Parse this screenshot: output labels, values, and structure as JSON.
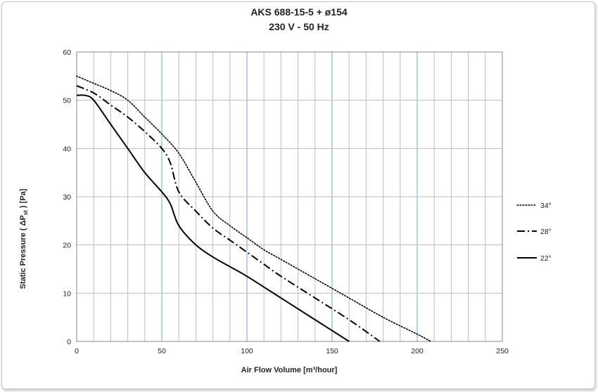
{
  "chart_data": {
    "type": "line",
    "title": "AKS 688-15-5 + ø154",
    "subtitle": "230 V - 50 Hz",
    "xlabel": "Air Flow Volume [m³/hour]",
    "ylabel_parts": {
      "prefix": "Static Pressure ( ΔP",
      "sub": "st",
      "suffix": " ) [Pa]"
    },
    "xlim": [
      0,
      250
    ],
    "ylim": [
      0,
      60
    ],
    "x_ticks": [
      0,
      50,
      100,
      150,
      200,
      250
    ],
    "y_ticks": [
      0,
      10,
      20,
      30,
      40,
      50,
      60
    ],
    "x_tick_labels": [
      "0",
      "50",
      "100",
      "150",
      "200",
      "250"
    ],
    "y_tick_labels": [
      "0",
      "10",
      "20",
      "30",
      "40",
      "50",
      "60"
    ],
    "grid": true,
    "legend_position": "right",
    "series": [
      {
        "name": "34°",
        "style": "dotted",
        "x": [
          0,
          10,
          20,
          30,
          40,
          50,
          60,
          70,
          80,
          90,
          100,
          110,
          120,
          140,
          160,
          180,
          200,
          208
        ],
        "y": [
          55,
          53.5,
          52,
          50,
          46.5,
          43,
          39,
          33,
          27,
          24,
          21.5,
          19,
          17,
          13,
          9,
          5,
          1.5,
          0
        ]
      },
      {
        "name": "28°",
        "style": "dash-dot",
        "x": [
          0,
          10,
          20,
          30,
          40,
          50,
          55,
          60,
          70,
          80,
          90,
          100,
          110,
          120,
          140,
          160,
          178
        ],
        "y": [
          53,
          51.5,
          49,
          46.5,
          43.5,
          40,
          37,
          31,
          27,
          23.5,
          21,
          18.5,
          16,
          13.5,
          9,
          4.5,
          0
        ]
      },
      {
        "name": "22°",
        "style": "solid",
        "x": [
          0,
          5,
          10,
          20,
          30,
          40,
          50,
          55,
          60,
          70,
          80,
          90,
          100,
          120,
          140,
          160
        ],
        "y": [
          51,
          51,
          50,
          45,
          40,
          35,
          31,
          28.5,
          24,
          20,
          17.5,
          15.5,
          13.5,
          9,
          4.5,
          0
        ]
      }
    ]
  }
}
